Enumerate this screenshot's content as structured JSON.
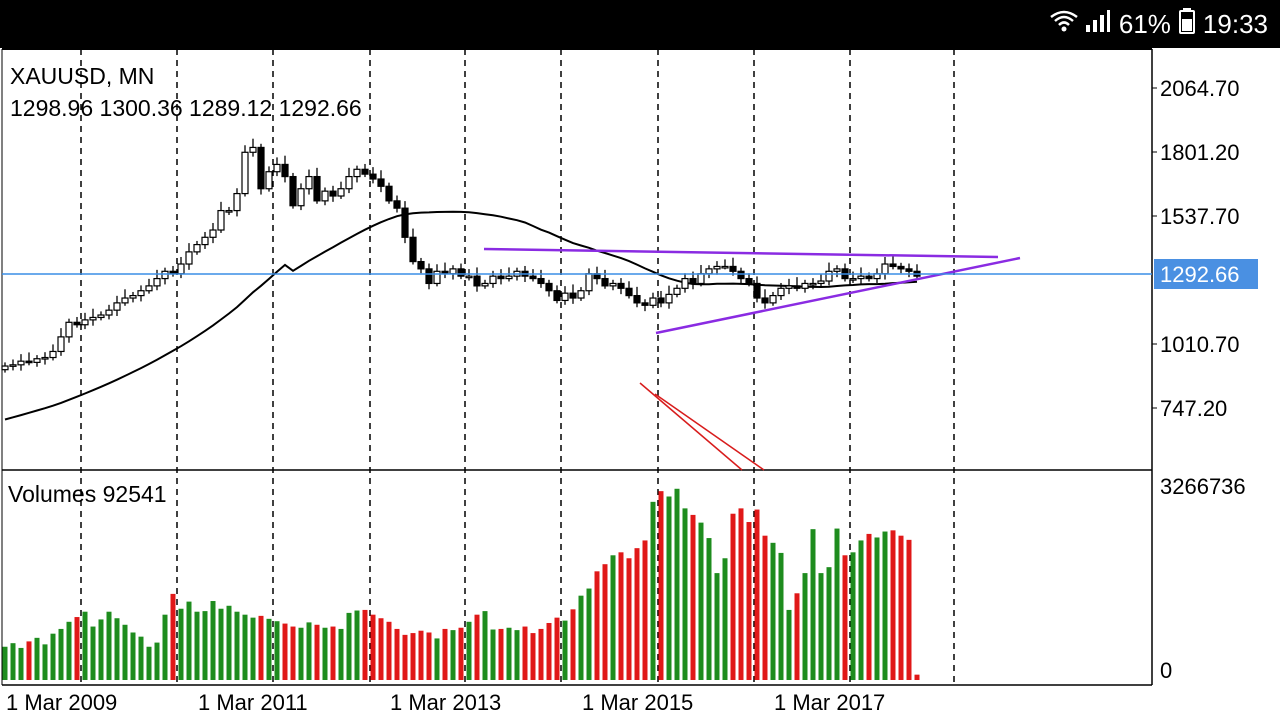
{
  "status_bar": {
    "battery_percent": "61%",
    "time": "19:33",
    "icons": [
      "wifi-icon",
      "signal-icon",
      "battery-icon"
    ]
  },
  "chart_header": {
    "symbol_timeframe": "XAUUSD, MN",
    "ohlc": "1298.96 1300.36 1289.12 1292.66"
  },
  "price_axis": {
    "ticks": [
      "2064.70",
      "1801.20",
      "1537.70",
      "1010.70",
      "747.20"
    ],
    "current_price_label": "1292.66"
  },
  "volume_panel": {
    "label": "Volumes 92541",
    "axis_top": "3266736",
    "axis_bottom": "0"
  },
  "time_axis": {
    "labels": [
      "1 Mar 2009",
      "1 Mar 2011",
      "1 Mar 2013",
      "1 Mar 2015",
      "1 Mar 2017"
    ]
  },
  "colors": {
    "up_volume": "#1e8c1e",
    "down_volume": "#e01818",
    "current_price_line": "#3a8ee6",
    "trendline": "#8a2be2",
    "red_line": "#d81c1c",
    "moving_average": "#000000"
  },
  "chart_data": {
    "type": "candlestick",
    "symbol": "XAUUSD",
    "timeframe": "MN",
    "last_ohlc": {
      "open": 1298.96,
      "high": 1300.36,
      "low": 1289.12,
      "close": 1292.66
    },
    "current_price": 1292.66,
    "price_axis_ticks": [
      2064.7,
      1801.2,
      1537.7,
      1010.7,
      747.2
    ],
    "volume_axis": [
      0,
      3266736
    ],
    "time_axis_labels": [
      "1 Mar 2009",
      "1 Mar 2011",
      "1 Mar 2013",
      "1 Mar 2015",
      "1 Mar 2017"
    ],
    "closes": [
      920,
      925,
      940,
      935,
      950,
      955,
      980,
      1040,
      1100,
      1090,
      1110,
      1120,
      1130,
      1150,
      1180,
      1200,
      1210,
      1230,
      1250,
      1280,
      1310,
      1300,
      1340,
      1390,
      1420,
      1450,
      1480,
      1560,
      1560,
      1630,
      1800,
      1820,
      1650,
      1720,
      1750,
      1700,
      1580,
      1650,
      1700,
      1600,
      1640,
      1620,
      1650,
      1700,
      1730,
      1710,
      1690,
      1660,
      1600,
      1570,
      1450,
      1350,
      1320,
      1260,
      1310,
      1300,
      1320,
      1290,
      1290,
      1250,
      1260,
      1290,
      1280,
      1290,
      1310,
      1290,
      1280,
      1260,
      1230,
      1190,
      1220,
      1200,
      1230,
      1300,
      1280,
      1250,
      1260,
      1240,
      1210,
      1180,
      1170,
      1200,
      1180,
      1215,
      1240,
      1280,
      1260,
      1300,
      1320,
      1330,
      1330,
      1310,
      1280,
      1260,
      1200,
      1180,
      1210,
      1240,
      1250,
      1240,
      1260,
      1260,
      1270,
      1310,
      1320,
      1280,
      1280,
      1290,
      1280,
      1300,
      1340,
      1330,
      1320,
      1310,
      1290
    ],
    "volumes": [
      560000,
      620000,
      540000,
      650000,
      710000,
      600000,
      780000,
      860000,
      980000,
      1060000,
      1150000,
      900000,
      1020000,
      1150000,
      1040000,
      930000,
      800000,
      730000,
      560000,
      630000,
      1100000,
      1450000,
      1200000,
      1320000,
      1150000,
      1160000,
      1330000,
      1200000,
      1250000,
      1150000,
      1100000,
      1050000,
      1080000,
      1030000,
      990000,
      950000,
      900000,
      880000,
      970000,
      930000,
      880000,
      900000,
      860000,
      1130000,
      1170000,
      1180000,
      1100000,
      1040000,
      980000,
      860000,
      760000,
      790000,
      830000,
      800000,
      700000,
      860000,
      840000,
      880000,
      980000,
      1100000,
      1160000,
      850000,
      860000,
      880000,
      840000,
      900000,
      790000,
      860000,
      960000,
      1050000,
      1000000,
      1190000,
      1420000,
      1540000,
      1830000,
      1950000,
      2100000,
      2150000,
      2050000,
      2220000,
      2350000,
      3000000,
      3180000,
      3090000,
      3220000,
      2890000,
      2780000,
      2650000,
      2390000,
      1800000,
      2050000,
      2800000,
      2890000,
      2660000,
      2870000,
      2430000,
      2310000,
      2140000,
      1180000,
      1460000,
      1800000,
      2540000,
      1800000,
      1900000,
      2550000,
      2100000,
      2150000,
      2350000,
      2460000,
      2400000,
      2500000,
      2520000,
      2430000,
      2360000,
      90000
    ]
  }
}
